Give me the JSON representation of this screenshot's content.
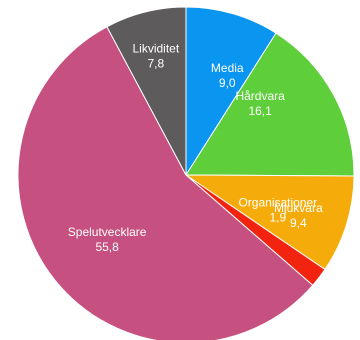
{
  "chart_data": {
    "type": "pie",
    "slices": [
      {
        "label": "Media",
        "value": "9,0",
        "numeric": 9.0,
        "color": "#0a96f0"
      },
      {
        "label": "Hårdvara",
        "value": "16,1",
        "numeric": 16.1,
        "color": "#5ecf3a"
      },
      {
        "label": "Mjukvara",
        "value": "9,4",
        "numeric": 9.4,
        "color": "#f5ac0a"
      },
      {
        "label": "Organisationer",
        "value": "1,9",
        "numeric": 1.9,
        "color": "#f2230f"
      },
      {
        "label": "Spelutvecklare",
        "value": "55,8",
        "numeric": 55.8,
        "color": "#c6507f"
      },
      {
        "label": "Likviditet",
        "value": "7,8",
        "numeric": 7.8,
        "color": "#5d5b5c"
      }
    ]
  }
}
